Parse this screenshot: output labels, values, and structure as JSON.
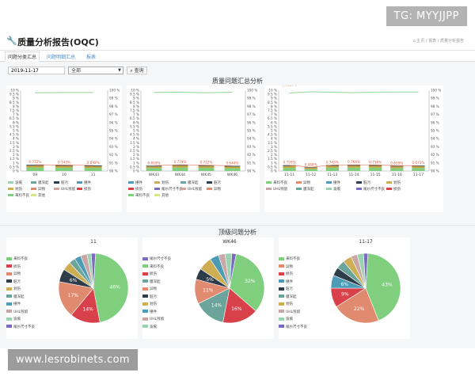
{
  "overlay": {
    "tg": "TG: MYYJJPP",
    "url": "www.lesrobinets.com"
  },
  "header": {
    "title": "质量分析报告(OQC)",
    "breadcrumbs": [
      "主页",
      "报表",
      "质量分析报告"
    ]
  },
  "tabs": [
    {
      "label": "问题分类汇总",
      "active": true
    },
    {
      "label": "问题明细汇总",
      "active": false
    },
    {
      "label": "报表",
      "active": false
    }
  ],
  "filter": {
    "date": "2019-11-17",
    "select_value": "全部",
    "query_label": "查询"
  },
  "summary_title": "质量问题汇总分析",
  "top_title": "顶级问题分析",
  "colors": {
    "pass_line": "#8fd694",
    "fail_line": "#e6785b",
    "bar_green": "#7fcf7f",
    "bar_olive": "#c9a23c",
    "bar_dark": "#3b4f5c"
  },
  "chart_data": [
    {
      "type": "bar",
      "name": "daily",
      "categories": [
        "09",
        "10",
        "11"
      ],
      "pass_rate": [
        99.698,
        99.719,
        99.723
      ],
      "pass_labels": [
        "99.698%",
        "99.719%",
        "99.723%"
      ],
      "fail_rate": [
        0.772,
        0.743,
        0.692
      ],
      "fail_labels": [
        "0.772%",
        "0.743%",
        "0.692%"
      ],
      "ylim_left": [
        0,
        10
      ],
      "ylim_right": [
        90,
        100
      ],
      "left_ticks": [
        "10 %",
        "9.5 %",
        "9 %",
        "8.5 %",
        "8 %",
        "7.5 %",
        "7 %",
        "6.5 %",
        "6 %",
        "5.5 %",
        "5 %",
        "4.5 %",
        "4 %",
        "3.5 %",
        "3 %",
        "2.5 %",
        "2 %",
        "1.5 %",
        "1 %",
        "0.5 %",
        "0 %"
      ],
      "right_ticks": [
        "100 %",
        "99 %",
        "98 %",
        "97 %",
        "96 %",
        "95 %",
        "94 %",
        "93 %",
        "92 %",
        "91 %",
        "90 %"
      ]
    },
    {
      "type": "bar",
      "name": "weekly",
      "categories": [
        "WK43",
        "WK44",
        "WK45",
        "WK46"
      ],
      "pass_rate": [
        99.733,
        99.765,
        99.688,
        99.756
      ],
      "pass_labels": [
        "99.733%",
        "99.765%",
        "99.688%",
        "99.756%"
      ],
      "fail_rate": [
        0.659,
        0.779,
        0.722,
        0.644
      ],
      "fail_labels": [
        "0.659%",
        "0.779%",
        "0.722%",
        "0.644%"
      ],
      "ylim_left": [
        0,
        10
      ],
      "ylim_right": [
        90,
        100
      ],
      "left_ticks": [
        "10 %",
        "9.5 %",
        "9 %",
        "8.5 %",
        "8 %",
        "7.5 %",
        "7 %",
        "6.5 %",
        "6 %",
        "5.5 %",
        "5 %",
        "4.5 %",
        "4 %",
        "3.5 %",
        "3 %",
        "2.5 %",
        "2 %",
        "1.5 %",
        "1 %",
        "0.5 %",
        "0 %"
      ],
      "right_ticks": [
        "100 %",
        "99 %",
        "98 %",
        "97 %",
        "96 %",
        "95 %",
        "94 %",
        "93 %",
        "92 %",
        "91 %",
        "90 %"
      ]
    },
    {
      "type": "bar",
      "name": "daily-recent",
      "categories": [
        "11-11",
        "11-12",
        "11-13",
        "11-14",
        "11-15",
        "11-16",
        "11-17"
      ],
      "pass_rate": [
        99.659,
        99.822,
        99.747,
        99.706,
        99.767,
        99.783,
        99.779
      ],
      "pass_labels": [
        "99.659%",
        "99.822%",
        "99.747%",
        "99.706%",
        "99.767%",
        "99.783%",
        "99.779%"
      ],
      "fail_rate": [
        0.726,
        0.458,
        0.743,
        0.766,
        0.756,
        0.659,
        0.671
      ],
      "fail_labels": [
        "0.726%",
        "0.458%",
        "0.743%",
        "0.766%",
        "0.756%",
        "0.659%",
        "0.671%"
      ],
      "ylim_left": [
        0,
        10
      ],
      "ylim_right": [
        90,
        100
      ],
      "left_ticks": [
        "10 %",
        "9.5 %",
        "9 %",
        "8.5 %",
        "8 %",
        "7.5 %",
        "7 %",
        "6.5 %",
        "6 %",
        "5.5 %",
        "5 %",
        "4.5 %",
        "4 %",
        "3.5 %",
        "3 %",
        "2.5 %",
        "2 %",
        "1.5 %",
        "1 %",
        "0.5 %",
        "0 %"
      ],
      "right_ticks": [
        "100 %",
        "99 %",
        "98 %",
        "97 %",
        "96 %",
        "95 %",
        "94 %",
        "93 %",
        "92 %",
        "91 %",
        "90 %"
      ]
    },
    {
      "type": "pie",
      "name": "pie-day",
      "title": "11",
      "slices": [
        {
          "label": "来料不良",
          "value": 46,
          "color": "#7fcf7f",
          "text": "46%"
        },
        {
          "label": "损伤",
          "value": 14,
          "color": "#d9414a",
          "text": "14%"
        },
        {
          "label": "异物",
          "value": 17,
          "color": "#e08a70",
          "text": "17%"
        },
        {
          "label": "脏污",
          "value": 6,
          "color": "#2f3d4a",
          "text": "6%"
        },
        {
          "label": "划伤",
          "value": 4,
          "color": "#cdae52",
          "text": ""
        },
        {
          "label": "膜深起",
          "value": 3,
          "color": "#6aa49a",
          "text": ""
        },
        {
          "label": "撞件",
          "value": 3,
          "color": "#4d9bb5",
          "text": ""
        },
        {
          "label": "UHL残留",
          "value": 3,
          "color": "#c9a7a7",
          "text": ""
        },
        {
          "label": "波痕",
          "value": 2,
          "color": "#9bd3b0",
          "text": ""
        },
        {
          "label": "尾纱尺寸不良",
          "value": 2,
          "color": "#7a6bbf",
          "text": ""
        }
      ]
    },
    {
      "type": "pie",
      "name": "pie-week",
      "title": "WK46",
      "slices": [
        {
          "label": "尾纱尺寸不良",
          "value": 2,
          "color": "#7a6bbf",
          "text": ""
        },
        {
          "label": "来料不良",
          "value": 32,
          "color": "#7fcf7f",
          "text": "32%"
        },
        {
          "label": "损伤",
          "value": 16,
          "color": "#d9414a",
          "text": "16%"
        },
        {
          "label": "膜深起",
          "value": 14,
          "color": "#6aa49a",
          "text": "14%"
        },
        {
          "label": "异物",
          "value": 11,
          "color": "#e08a70",
          "text": "11%"
        },
        {
          "label": "脏污",
          "value": 5,
          "color": "#2f3d4a",
          "text": "5%"
        },
        {
          "label": "划伤",
          "value": 6,
          "color": "#cdae52",
          "text": ""
        },
        {
          "label": "撞件",
          "value": 4,
          "color": "#4d9bb5",
          "text": ""
        },
        {
          "label": "UHL残留",
          "value": 3,
          "color": "#c9a7a7",
          "text": ""
        },
        {
          "label": "波痕",
          "value": 3,
          "color": "#9bd3b0",
          "text": ""
        }
      ]
    },
    {
      "type": "pie",
      "name": "pie-date",
      "title": "11-17",
      "slices": [
        {
          "label": "来料不良",
          "value": 43,
          "color": "#7fcf7f",
          "text": "43%"
        },
        {
          "label": "异物",
          "value": 22,
          "color": "#e08a70",
          "text": "22%"
        },
        {
          "label": "损伤",
          "value": 9,
          "color": "#d9414a",
          "text": "9%"
        },
        {
          "label": "撞件",
          "value": 6,
          "color": "#4d9bb5",
          "text": "6%"
        },
        {
          "label": "脏污",
          "value": 4,
          "color": "#2f3d4a",
          "text": ""
        },
        {
          "label": "膜深起",
          "value": 4,
          "color": "#6aa49a",
          "text": ""
        },
        {
          "label": "划伤",
          "value": 4,
          "color": "#cdae52",
          "text": ""
        },
        {
          "label": "UHL残留",
          "value": 3,
          "color": "#c9a7a7",
          "text": ""
        },
        {
          "label": "波痕",
          "value": 3,
          "color": "#9bd3b0",
          "text": ""
        },
        {
          "label": "尾纱尺寸不良",
          "value": 2,
          "color": "#7a6bbf",
          "text": ""
        }
      ]
    }
  ],
  "bar_legend": [
    [
      {
        "label": "波痕",
        "color": "#9bd3b0"
      },
      {
        "label": "膜深起",
        "color": "#6aa49a"
      },
      {
        "label": "脏污",
        "color": "#2f3d4a"
      },
      {
        "label": "撞件",
        "color": "#4d9bb5"
      },
      {
        "label": "划伤",
        "color": "#cdae52"
      },
      {
        "label": "异物",
        "color": "#e08a70"
      },
      {
        "label": "UHL残留",
        "color": "#c9a7a7"
      },
      {
        "label": "损伤",
        "color": "#d9414a"
      },
      {
        "label": "来料不良",
        "color": "#7fcf7f"
      },
      {
        "label": "其他",
        "color": "#d9e87a"
      }
    ],
    [
      {
        "label": "撞件",
        "color": "#4d9bb5"
      },
      {
        "label": "划伤",
        "color": "#cdae52"
      },
      {
        "label": "膜深起",
        "color": "#6aa49a"
      },
      {
        "label": "脏污",
        "color": "#2f3d4a"
      },
      {
        "label": "损伤",
        "color": "#d9414a"
      },
      {
        "label": "尾纱尺寸不良",
        "color": "#7a6bbf"
      },
      {
        "label": "UHL残留",
        "color": "#c9a7a7"
      },
      {
        "label": "异物",
        "color": "#e08a70"
      },
      {
        "label": "来料不良",
        "color": "#7fcf7f"
      },
      {
        "label": "其他",
        "color": "#d9e87a"
      }
    ],
    [
      {
        "label": "来料不良",
        "color": "#7fcf7f"
      },
      {
        "label": "异物",
        "color": "#e08a70"
      },
      {
        "label": "撞件",
        "color": "#4d9bb5"
      },
      {
        "label": "脏污",
        "color": "#2f3d4a"
      },
      {
        "label": "划伤",
        "color": "#cdae52"
      },
      {
        "label": "UHL残留",
        "color": "#c9a7a7"
      },
      {
        "label": "膜深起",
        "color": "#6aa49a"
      },
      {
        "label": "波痕",
        "color": "#9bd3b0"
      },
      {
        "label": "尾纱尺寸不良",
        "color": "#7a6bbf"
      },
      {
        "label": "损伤",
        "color": "#d9414a"
      }
    ]
  ]
}
